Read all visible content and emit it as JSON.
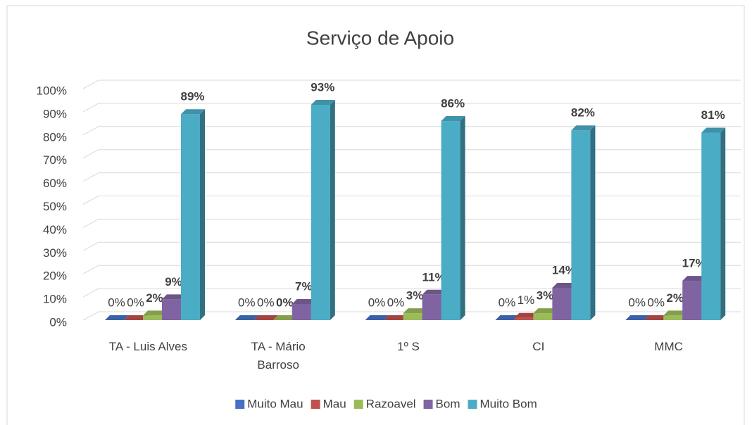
{
  "chart_data": {
    "type": "bar3d",
    "title": "Serviço de Apoio",
    "categories": [
      "TA - Luis Alves",
      "TA - Mário Barroso",
      "1º S",
      "CI",
      "MMC"
    ],
    "series": [
      {
        "name": "Muito Mau",
        "color": "#4472c4",
        "values": [
          0,
          0,
          0,
          0,
          0
        ],
        "value_labels": [
          "0%",
          "0%",
          "0%",
          "0%",
          "0%"
        ]
      },
      {
        "name": "Mau",
        "color": "#c0504d",
        "values": [
          0,
          0,
          0,
          1,
          0
        ],
        "value_labels": [
          "0%",
          "0%",
          "0%",
          "1%",
          "0%"
        ]
      },
      {
        "name": "Razoavel",
        "color": "#9bbb59",
        "values": [
          2,
          0,
          3,
          3,
          2
        ],
        "value_labels": [
          "2%",
          "0%",
          "3%",
          "3%",
          "2%"
        ]
      },
      {
        "name": "Bom",
        "color": "#8064a2",
        "values": [
          9,
          7,
          11,
          14,
          17
        ],
        "value_labels": [
          "9%",
          "7%",
          "11%",
          "14%",
          "17%"
        ]
      },
      {
        "name": "Muito Bom",
        "color": "#4bacc6",
        "values": [
          89,
          93,
          86,
          82,
          81
        ],
        "value_labels": [
          "89%",
          "93%",
          "86%",
          "82%",
          "81%"
        ]
      }
    ],
    "ylim": [
      0,
      100
    ],
    "yticks": [
      {
        "value": 0,
        "label": "0%"
      },
      {
        "value": 10,
        "label": "10%"
      },
      {
        "value": 20,
        "label": "20%"
      },
      {
        "value": 30,
        "label": "30%"
      },
      {
        "value": 40,
        "label": "40%"
      },
      {
        "value": 50,
        "label": "50%"
      },
      {
        "value": 60,
        "label": "60%"
      },
      {
        "value": 70,
        "label": "70%"
      },
      {
        "value": 80,
        "label": "80%"
      },
      {
        "value": 90,
        "label": "90%"
      },
      {
        "value": 100,
        "label": "100%"
      }
    ],
    "grid": true,
    "legend": "bottom"
  }
}
